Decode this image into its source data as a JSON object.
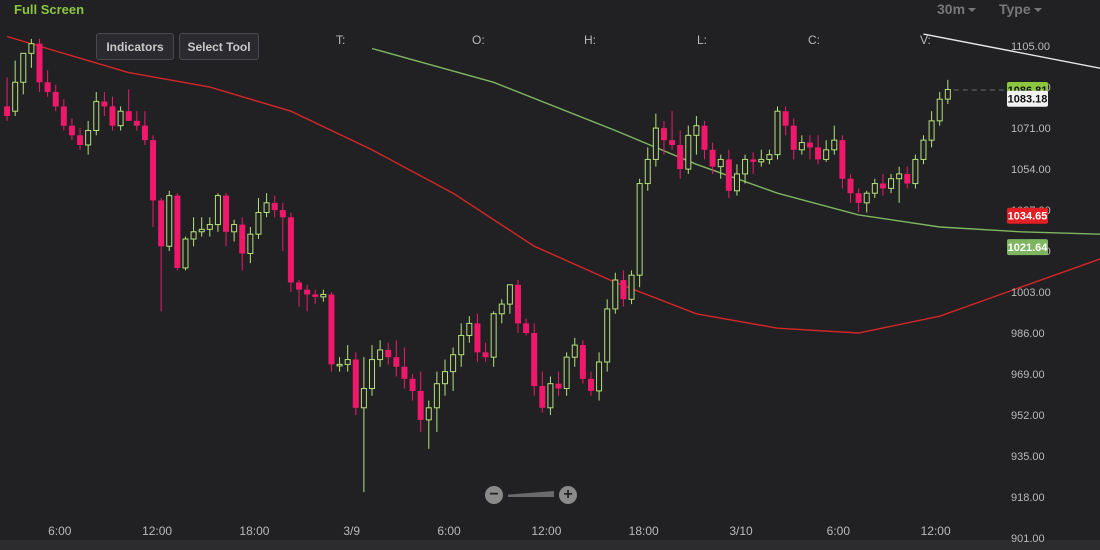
{
  "toolbar": {
    "full_screen": "Full Screen",
    "interval": "30m",
    "type": "Type",
    "indicators": "Indicators",
    "select_tool": "Select Tool"
  },
  "ohlc_labels": [
    "T:",
    "O:",
    "H:",
    "L:",
    "C:",
    "V:"
  ],
  "colors": {
    "background": "#212124",
    "up": "#b5e07a",
    "down": "#f0186b",
    "ma_red": "#d42626",
    "ma_green": "#7fb561",
    "trend_white": "#e8e8e8"
  },
  "chart_data": {
    "type": "candlestick",
    "ylim": [
      901,
      1115
    ],
    "y_ticks": [
      "1105.00",
      "1088.00",
      "1071.00",
      "1054.00",
      "1037.00",
      "1020.00",
      "1003.00",
      "986.00",
      "969.00",
      "952.00",
      "935.00",
      "918.00",
      "901.00"
    ],
    "x_ticks": [
      "6:00",
      "12:00",
      "18:00",
      "3/9",
      "6:00",
      "12:00",
      "18:00",
      "3/10",
      "6:00",
      "12:00"
    ],
    "x_tick_slots": [
      6.5,
      18.5,
      30.5,
      42.5,
      54.5,
      66.5,
      78.5,
      90.5,
      102.5,
      114.5
    ],
    "price_tags": [
      {
        "value": "1086.81",
        "price": 1086.81,
        "color": "#8cc63f",
        "text_color": "#111"
      },
      {
        "value": "1083.18",
        "price": 1083.18,
        "color": "#f2f2f2",
        "text_color": "#111"
      },
      {
        "value": "1034.65",
        "price": 1034.65,
        "color": "#e31e24",
        "text_color": "#ffffff"
      },
      {
        "value": "1021.64",
        "price": 1021.64,
        "color": "#7fb561",
        "text_color": "#ffffff"
      }
    ],
    "last_price": 1086.81,
    "candles": [
      [
        1080,
        1092,
        1076,
        1074
      ],
      [
        1078,
        1099,
        1090,
        1076
      ],
      [
        1090,
        1102,
        1102,
        1085
      ],
      [
        1102,
        1108,
        1106,
        1096
      ],
      [
        1106,
        1108,
        1090,
        1086
      ],
      [
        1090,
        1095,
        1086,
        1084
      ],
      [
        1086,
        1089,
        1080,
        1078
      ],
      [
        1080,
        1083,
        1072,
        1070
      ],
      [
        1072,
        1075,
        1068,
        1066
      ],
      [
        1068,
        1071,
        1064,
        1062
      ],
      [
        1064,
        1074,
        1070,
        1060
      ],
      [
        1070,
        1086,
        1082,
        1068
      ],
      [
        1082,
        1086,
        1080,
        1076
      ],
      [
        1080,
        1084,
        1072,
        1070
      ],
      [
        1072,
        1080,
        1078,
        1070
      ],
      [
        1078,
        1087,
        1074,
        1074
      ],
      [
        1074,
        1078,
        1072,
        1070
      ],
      [
        1072,
        1078,
        1066,
        1064
      ],
      [
        1066,
        1068,
        1041,
        1030
      ],
      [
        1041,
        1042,
        1022,
        995
      ],
      [
        1022,
        1045,
        1043,
        1020
      ],
      [
        1043,
        1044,
        1013,
        1012
      ],
      [
        1013,
        1026,
        1025,
        1012
      ],
      [
        1025,
        1034,
        1028,
        1022
      ],
      [
        1028,
        1034,
        1029,
        1026
      ],
      [
        1029,
        1034,
        1031,
        1026
      ],
      [
        1031,
        1044,
        1043,
        1028
      ],
      [
        1043,
        1044,
        1028,
        1022
      ],
      [
        1028,
        1033,
        1031,
        1024
      ],
      [
        1031,
        1034,
        1019,
        1012
      ],
      [
        1019,
        1030,
        1027,
        1015
      ],
      [
        1027,
        1042,
        1036,
        1025
      ],
      [
        1036,
        1044,
        1040,
        1034
      ],
      [
        1040,
        1043,
        1037,
        1034
      ],
      [
        1037,
        1040,
        1034,
        1020
      ],
      [
        1034,
        1036,
        1007,
        1003
      ],
      [
        1007,
        1008,
        1004,
        997
      ],
      [
        1004,
        1006,
        1002,
        995
      ],
      [
        1002,
        1004,
        1001,
        998
      ],
      [
        1001,
        1004,
        1002,
        999
      ],
      [
        1002,
        1003,
        973,
        970
      ],
      [
        973,
        976,
        973,
        970
      ],
      [
        973,
        981,
        975,
        970
      ],
      [
        975,
        978,
        955,
        952
      ],
      [
        955,
        976,
        963,
        920
      ],
      [
        963,
        981,
        975,
        960
      ],
      [
        975,
        983,
        979,
        972
      ],
      [
        979,
        982,
        976,
        973
      ],
      [
        976,
        983,
        972,
        968
      ],
      [
        972,
        980,
        967,
        963
      ],
      [
        967,
        969,
        962,
        958
      ],
      [
        962,
        970,
        950,
        945
      ],
      [
        950,
        958,
        955,
        938
      ],
      [
        955,
        970,
        965,
        945
      ],
      [
        965,
        975,
        970,
        960
      ],
      [
        970,
        980,
        977,
        962
      ],
      [
        977,
        990,
        985,
        972
      ],
      [
        985,
        993,
        990,
        982
      ],
      [
        990,
        994,
        978,
        974
      ],
      [
        978,
        982,
        976,
        974
      ],
      [
        976,
        995,
        994,
        972
      ],
      [
        994,
        1000,
        998,
        990
      ],
      [
        998,
        1006,
        1006,
        994
      ],
      [
        1006,
        1008,
        990,
        986
      ],
      [
        990,
        992,
        986,
        985
      ],
      [
        986,
        990,
        964,
        960
      ],
      [
        964,
        970,
        955,
        953
      ],
      [
        955,
        968,
        965,
        952
      ],
      [
        965,
        970,
        963,
        960
      ],
      [
        963,
        978,
        976,
        960
      ],
      [
        976,
        984,
        981,
        972
      ],
      [
        981,
        983,
        967,
        965
      ],
      [
        967,
        970,
        962,
        960
      ],
      [
        962,
        978,
        974,
        958
      ],
      [
        974,
        1000,
        996,
        970
      ],
      [
        996,
        1011,
        1008,
        994
      ],
      [
        1008,
        1012,
        1000,
        997
      ],
      [
        1000,
        1012,
        1010,
        998
      ],
      [
        1010,
        1050,
        1048,
        1005
      ],
      [
        1048,
        1063,
        1058,
        1045
      ],
      [
        1058,
        1077,
        1071,
        1055
      ],
      [
        1071,
        1074,
        1066,
        1060
      ],
      [
        1066,
        1078,
        1064,
        1062
      ],
      [
        1064,
        1070,
        1054,
        1050
      ],
      [
        1054,
        1072,
        1068,
        1052
      ],
      [
        1068,
        1076,
        1072,
        1060
      ],
      [
        1072,
        1074,
        1062,
        1058
      ],
      [
        1062,
        1065,
        1055,
        1052
      ],
      [
        1055,
        1060,
        1058,
        1050
      ],
      [
        1058,
        1062,
        1045,
        1042
      ],
      [
        1045,
        1056,
        1052,
        1043
      ],
      [
        1052,
        1060,
        1058,
        1048
      ],
      [
        1058,
        1061,
        1057,
        1052
      ],
      [
        1057,
        1062,
        1058,
        1055
      ],
      [
        1058,
        1062,
        1060,
        1056
      ],
      [
        1060,
        1080,
        1078,
        1058
      ],
      [
        1078,
        1080,
        1072,
        1068
      ],
      [
        1072,
        1075,
        1062,
        1058
      ],
      [
        1062,
        1068,
        1065,
        1060
      ],
      [
        1065,
        1068,
        1063,
        1058
      ],
      [
        1063,
        1068,
        1058,
        1056
      ],
      [
        1058,
        1066,
        1062,
        1057
      ],
      [
        1062,
        1072,
        1066,
        1060
      ],
      [
        1066,
        1068,
        1050,
        1046
      ],
      [
        1050,
        1052,
        1044,
        1040
      ],
      [
        1044,
        1046,
        1040,
        1036
      ],
      [
        1040,
        1045,
        1044,
        1036
      ],
      [
        1044,
        1050,
        1048,
        1042
      ],
      [
        1048,
        1052,
        1046,
        1043
      ],
      [
        1046,
        1052,
        1050,
        1044
      ],
      [
        1050,
        1055,
        1052,
        1040
      ],
      [
        1052,
        1055,
        1048,
        1046
      ],
      [
        1048,
        1060,
        1058,
        1046
      ],
      [
        1058,
        1068,
        1066,
        1056
      ],
      [
        1066,
        1078,
        1074,
        1063
      ],
      [
        1074,
        1086,
        1083,
        1072
      ],
      [
        1083,
        1091,
        1087,
        1081
      ]
    ],
    "ma_red": [
      [
        0,
        1109
      ],
      [
        8,
        1101
      ],
      [
        15,
        1094
      ],
      [
        25,
        1088
      ],
      [
        35,
        1078
      ],
      [
        45,
        1062
      ],
      [
        55,
        1044
      ],
      [
        65,
        1022
      ],
      [
        75,
        1007
      ],
      [
        85,
        994
      ],
      [
        95,
        988
      ],
      [
        105,
        986
      ],
      [
        115,
        993
      ],
      [
        125,
        1005
      ],
      [
        135,
        1017
      ],
      [
        145,
        1028
      ],
      [
        155,
        1036
      ]
    ],
    "ma_green": [
      [
        45,
        1104
      ],
      [
        60,
        1090
      ],
      [
        75,
        1070
      ],
      [
        85,
        1056
      ],
      [
        95,
        1044
      ],
      [
        105,
        1035
      ],
      [
        115,
        1030
      ],
      [
        125,
        1028
      ],
      [
        135,
        1027
      ],
      [
        145,
        1024
      ],
      [
        155,
        1021
      ]
    ],
    "trend_line": [
      [
        113,
        1110
      ],
      [
        153,
        1084
      ]
    ]
  }
}
